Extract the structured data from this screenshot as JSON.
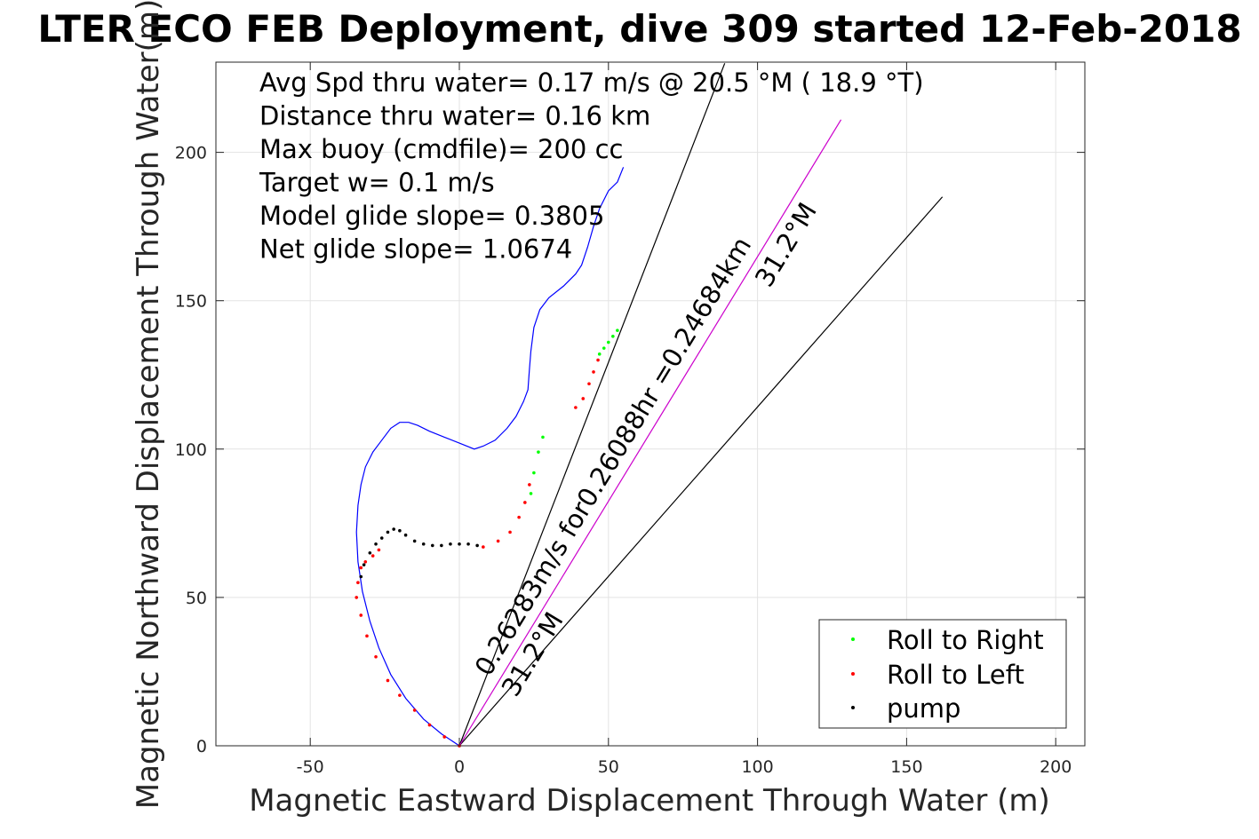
{
  "chart_data": {
    "type": "line",
    "title": "LTER ECO FEB Deployment, dive 309 started 12-Feb-2018",
    "xlabel": "Magnetic Eastward Displacement Through Water (m)",
    "ylabel": "Magnetic Northward Displacement Through Water(m)",
    "xlim": [
      -82,
      210
    ],
    "ylim": [
      0,
      230
    ],
    "x_ticks": [
      -50,
      0,
      50,
      100,
      150,
      200
    ],
    "x_tick_labels": [
      "-50",
      "0",
      "50",
      "100",
      "150",
      "200"
    ],
    "y_ticks": [
      0,
      50,
      100,
      150,
      200
    ],
    "y_tick_labels": [
      "0",
      "50",
      "100",
      "150",
      "200"
    ],
    "grid": true,
    "legend_position": "bottom-right",
    "legend": [
      {
        "label": "Roll to Right",
        "color": "#00ff00"
      },
      {
        "label": "Roll to Left",
        "color": "#ff0000"
      },
      {
        "label": "pump",
        "color": "#000000"
      }
    ],
    "annotations": [
      "Avg Spd thru water=  0.17 m/s @  20.5 °M ( 18.9 °T)",
      "Distance thru water=  0.16 km",
      "Max buoy (cmdfile)= 200 cc",
      "Target w= 0.1 m/s",
      "Model glide slope= 0.3805",
      "Net glide slope= 1.0674"
    ],
    "reference_lines": [
      {
        "x": [
          0,
          89
        ],
        "y": [
          0,
          230
        ],
        "color": "#000000"
      },
      {
        "x": [
          0,
          162
        ],
        "y": [
          0,
          185
        ],
        "color": "#000000"
      },
      {
        "x": [
          0,
          128
        ],
        "y": [
          0,
          211
        ],
        "color": "#cc00cc"
      }
    ],
    "line_labels": [
      {
        "text": "0.26283m/s for0.26088hr =0.24684km",
        "x": 10,
        "y": 23,
        "angle": 58.8
      },
      {
        "text": "31.2°M",
        "x": 19,
        "y": 16,
        "angle": 58.8
      },
      {
        "text": "31.2°M",
        "x": 104,
        "y": 154,
        "angle": 58.8
      }
    ],
    "track": {
      "name": "dive track",
      "color": "#0000ff",
      "x": [
        0,
        -6,
        -12,
        -18,
        -23,
        -27,
        -30,
        -32.5,
        -34,
        -34.5,
        -34,
        -33,
        -31.5,
        -29,
        -26,
        -23,
        -20,
        -17,
        -14,
        -10,
        -5,
        0,
        5,
        8,
        12,
        16,
        19,
        21.5,
        23,
        23.5,
        24,
        25,
        27,
        30,
        35,
        39,
        41,
        43,
        45,
        47,
        50,
        53,
        55
      ],
      "y": [
        0,
        4,
        9,
        16,
        24,
        33,
        42,
        52,
        62,
        72,
        81,
        88,
        94,
        99,
        103,
        107,
        109,
        109,
        108,
        106,
        104,
        102,
        100,
        101,
        103,
        107,
        111,
        116,
        120,
        127,
        133,
        141,
        147,
        151,
        155,
        159,
        162,
        168,
        175,
        181,
        187,
        190,
        195
      ]
    },
    "points": {
      "right_roll": {
        "x": [
          24,
          25,
          26.5,
          28,
          47,
          48.5,
          50,
          51.5,
          53
        ],
        "y": [
          85,
          92,
          99,
          104,
          132,
          134,
          136,
          138,
          140
        ]
      },
      "left_roll": {
        "x": [
          0,
          -5,
          -10,
          -15,
          -20,
          -24,
          -28,
          -31,
          -33,
          -34.5,
          -34,
          -33,
          -31.5,
          -29,
          -27,
          0,
          8,
          13,
          17,
          20,
          22,
          23.5,
          39,
          41.5,
          43.5,
          45,
          46.5
        ],
        "y": [
          0,
          3,
          7,
          12,
          17,
          22,
          30,
          37,
          44,
          50,
          55,
          60,
          62,
          64,
          66,
          0,
          67,
          69,
          72,
          77,
          82,
          88,
          114,
          117,
          122,
          126,
          130
        ]
      },
      "pump": {
        "x": [
          -33,
          -32,
          -30,
          -28,
          -26,
          -24,
          -22,
          -20,
          -18,
          -15,
          -12,
          -9,
          -6,
          -3,
          0,
          3,
          6
        ],
        "y": [
          57,
          61,
          65,
          68,
          70,
          72,
          73,
          72.5,
          71,
          69,
          68,
          67.5,
          67.5,
          68,
          68,
          68,
          67.5
        ]
      }
    }
  }
}
